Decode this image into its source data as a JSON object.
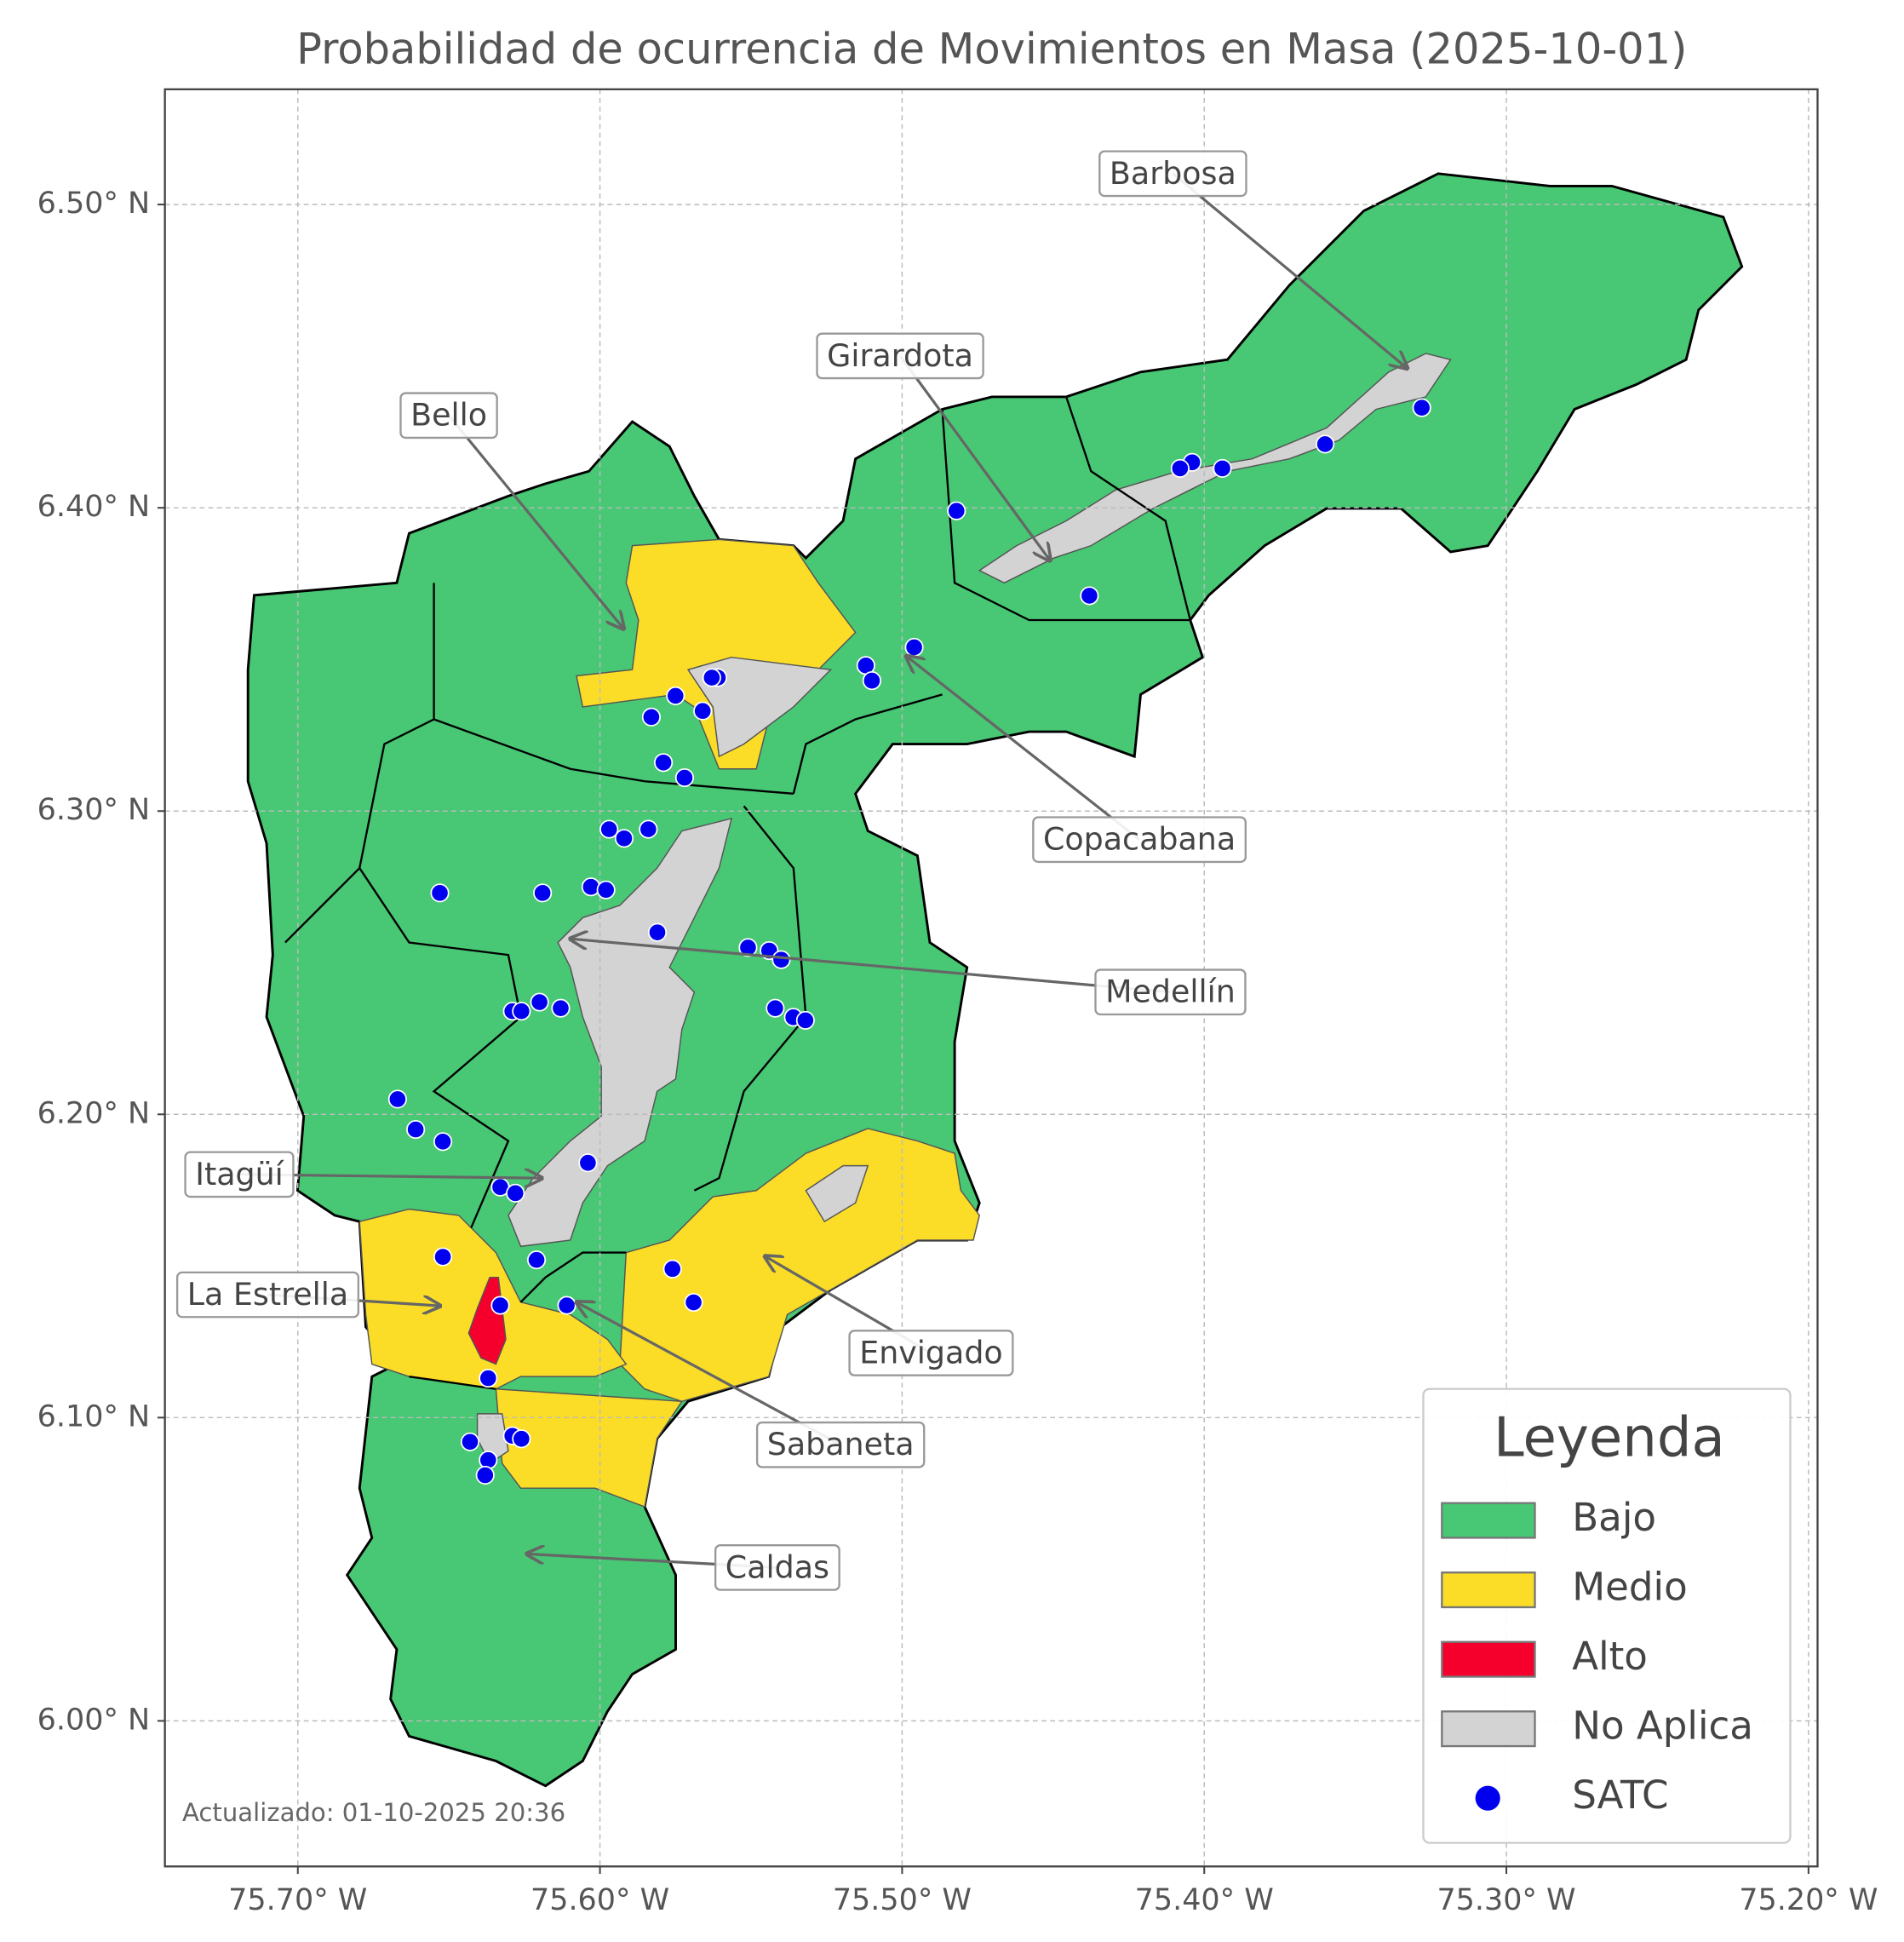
{
  "chart_data": {
    "type": "map",
    "title": "Probabilidad de ocurrencia de Movimientos en Masa (2025-10-01)",
    "xlim": [
      -75.744,
      -75.197
    ],
    "ylim": [
      5.952,
      6.538
    ],
    "xticks": [
      {
        "value": -75.7,
        "label": "75.70° W"
      },
      {
        "value": -75.6,
        "label": "75.60° W"
      },
      {
        "value": -75.5,
        "label": "75.50° W"
      },
      {
        "value": -75.4,
        "label": "75.40° W"
      },
      {
        "value": -75.3,
        "label": "75.30° W"
      },
      {
        "value": -75.2,
        "label": "75.20° W"
      }
    ],
    "yticks": [
      {
        "value": 6.0,
        "label": "6.00° N"
      },
      {
        "value": 6.1,
        "label": "6.10° N"
      },
      {
        "value": 6.2,
        "label": "6.20° N"
      },
      {
        "value": 6.3,
        "label": "6.30° N"
      },
      {
        "value": 6.4,
        "label": "6.40° N"
      },
      {
        "value": 6.5,
        "label": "6.50° N"
      }
    ],
    "grid": true,
    "legend": {
      "title": "Leyenda",
      "position": "lower right"
    },
    "categories": [
      {
        "name": "Bajo",
        "color": "#48c774"
      },
      {
        "name": "Medio",
        "color": "#fbdd27"
      },
      {
        "name": "Alto",
        "color": "#f5002c"
      },
      {
        "name": "No Aplica",
        "color": "#d3d3d3"
      }
    ],
    "series": [
      {
        "name": "SATC",
        "color": "#0000ee",
        "x": [
          -75.328,
          -75.36,
          -75.394,
          -75.404,
          -75.408,
          -75.482,
          -75.438,
          -75.496,
          -75.512,
          -75.51,
          -75.561,
          -75.563,
          -75.575,
          -75.566,
          -75.583,
          -75.579,
          -75.572,
          -75.597,
          -75.592,
          -75.584,
          -75.653,
          -75.619,
          -75.603,
          -75.598,
          -75.581,
          -75.551,
          -75.544,
          -75.54,
          -75.542,
          -75.536,
          -75.532,
          -75.629,
          -75.626,
          -75.62,
          -75.613,
          -75.667,
          -75.661,
          -75.652,
          -75.604,
          -75.633,
          -75.628,
          -75.652,
          -75.621,
          -75.576,
          -75.569,
          -75.611,
          -75.633,
          -75.637,
          -75.643,
          -75.629,
          -75.626,
          -75.637,
          -75.638
        ],
        "y": [
          6.433,
          6.421,
          6.413,
          6.415,
          6.413,
          6.399,
          6.371,
          6.354,
          6.348,
          6.343,
          6.344,
          6.344,
          6.338,
          6.333,
          6.331,
          6.316,
          6.311,
          6.294,
          6.291,
          6.294,
          6.273,
          6.273,
          6.275,
          6.274,
          6.26,
          6.255,
          6.254,
          6.251,
          6.235,
          6.232,
          6.231,
          6.234,
          6.234,
          6.237,
          6.235,
          6.205,
          6.195,
          6.191,
          6.184,
          6.176,
          6.174,
          6.153,
          6.152,
          6.149,
          6.138,
          6.137,
          6.137,
          6.113,
          6.092,
          6.094,
          6.093,
          6.086,
          6.081
        ]
      }
    ],
    "annotations": [
      "Barbosa",
      "Girardota",
      "Bello",
      "Copacabana",
      "Medellín",
      "Itagüí",
      "La Estrella",
      "Envigado",
      "Sabaneta",
      "Caldas"
    ],
    "note": "Actualizado: 01-10-2025 20:36"
  }
}
